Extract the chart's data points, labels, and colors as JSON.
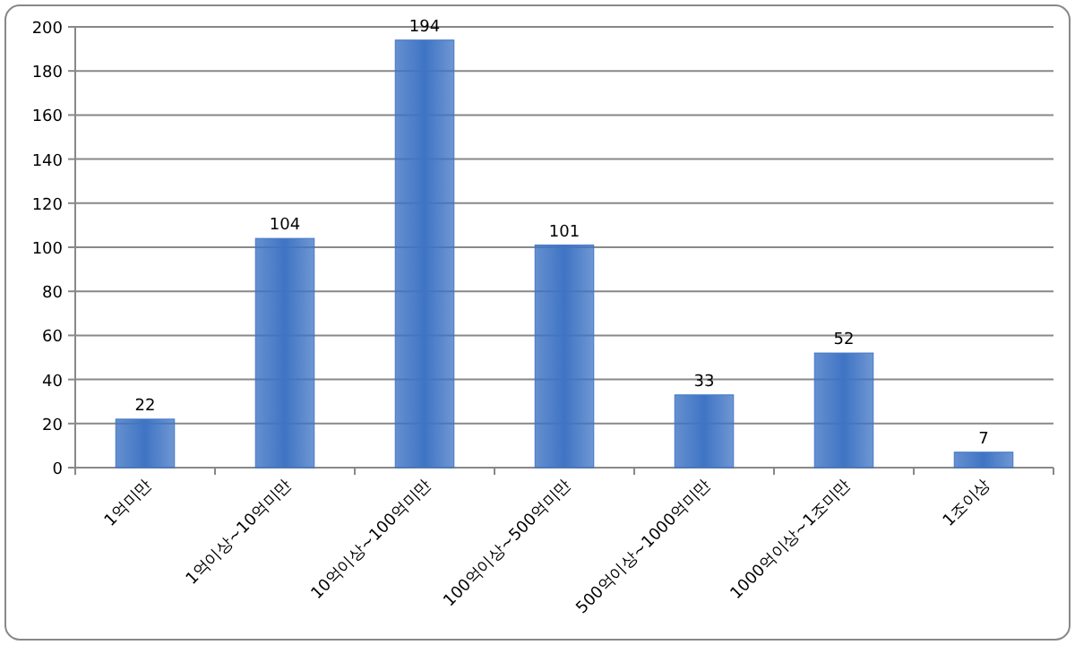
{
  "chart_data": {
    "type": "bar",
    "categories": [
      "1억미만",
      "1억이상~10억미만",
      "10억이상~100억미만",
      "100억이상~500억미만",
      "500억이상~1000억미만",
      "1000억이상~1조미만",
      "1조이상"
    ],
    "values": [
      22,
      104,
      194,
      101,
      33,
      52,
      7
    ],
    "color": "#3f74c4",
    "ylim": [
      0,
      200
    ],
    "yticks": [
      0,
      20,
      40,
      60,
      80,
      100,
      120,
      140,
      160,
      180,
      200
    ],
    "grid": "y",
    "data_labels": true
  }
}
